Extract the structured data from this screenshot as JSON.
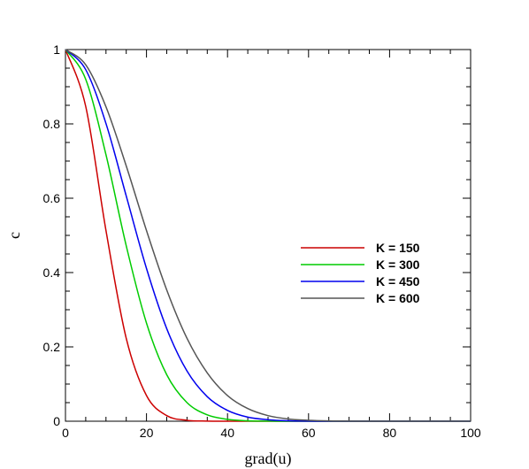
{
  "chart_data": {
    "type": "line",
    "title": "",
    "xlabel": "grad(u)",
    "ylabel": "c",
    "xlim": [
      0,
      100
    ],
    "ylim": [
      0,
      1
    ],
    "xticks": [
      0,
      20,
      40,
      60,
      80,
      100
    ],
    "yticks": [
      0,
      0.2,
      0.4,
      0.6,
      0.8,
      1
    ],
    "x_tick_labels": [
      "0",
      "20",
      "40",
      "60",
      "80",
      "100"
    ],
    "y_tick_labels": [
      "0",
      "0.2",
      "0.4",
      "0.6",
      "0.8",
      "1"
    ],
    "grid": false,
    "legend_position": "center-right",
    "x": [
      0,
      5,
      10,
      15,
      20,
      25,
      30,
      35,
      40,
      45,
      50,
      55,
      60,
      65,
      70,
      75,
      80,
      85,
      90,
      95,
      100
    ],
    "series": [
      {
        "name": "K = 150",
        "color": "#cc0000",
        "values": [
          1.0,
          0.847,
          0.513,
          0.223,
          0.069,
          0.015,
          0.0025,
          0.0003,
          0.0,
          0.0,
          0.0,
          0.0,
          0.0,
          0.0,
          0.0,
          0.0,
          0.0,
          0.0,
          0.0,
          0.0,
          0.0
        ]
      },
      {
        "name": "K = 300",
        "color": "#00cc00",
        "values": [
          1.0,
          0.92,
          0.717,
          0.472,
          0.264,
          0.125,
          0.05,
          0.017,
          0.005,
          0.001,
          0.0003,
          0.0,
          0.0,
          0.0,
          0.0,
          0.0,
          0.0,
          0.0,
          0.0,
          0.0,
          0.0
        ]
      },
      {
        "name": "K = 450",
        "color": "#0000ee",
        "values": [
          1.0,
          0.946,
          0.801,
          0.606,
          0.411,
          0.249,
          0.135,
          0.066,
          0.029,
          0.011,
          0.004,
          0.0012,
          0.0003,
          0.0,
          0.0,
          0.0,
          0.0,
          0.0,
          0.0,
          0.0,
          0.0
        ]
      },
      {
        "name": "K = 600",
        "color": "#555555",
        "values": [
          1.0,
          0.959,
          0.846,
          0.687,
          0.513,
          0.353,
          0.223,
          0.13,
          0.069,
          0.034,
          0.015,
          0.006,
          0.0025,
          0.0009,
          0.0003,
          0.0,
          0.0,
          0.0,
          0.0,
          0.0,
          0.0
        ]
      }
    ]
  }
}
